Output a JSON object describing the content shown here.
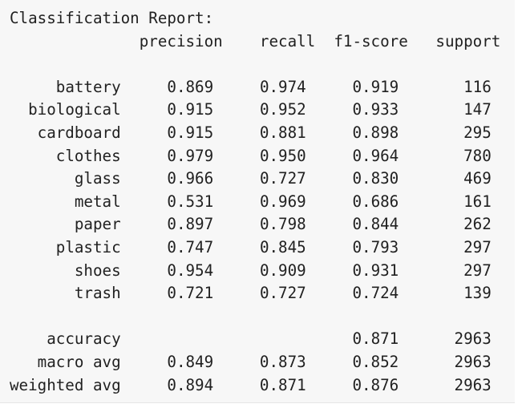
{
  "report": {
    "title": "Classification Report:",
    "headers": [
      "precision",
      "recall",
      "f1-score",
      "support"
    ],
    "rows": [
      {
        "label": "battery",
        "precision": "0.869",
        "recall": "0.974",
        "f1": "0.919",
        "support": "116"
      },
      {
        "label": "biological",
        "precision": "0.915",
        "recall": "0.952",
        "f1": "0.933",
        "support": "147"
      },
      {
        "label": "cardboard",
        "precision": "0.915",
        "recall": "0.881",
        "f1": "0.898",
        "support": "295"
      },
      {
        "label": "clothes",
        "precision": "0.979",
        "recall": "0.950",
        "f1": "0.964",
        "support": "780"
      },
      {
        "label": "glass",
        "precision": "0.966",
        "recall": "0.727",
        "f1": "0.830",
        "support": "469"
      },
      {
        "label": "metal",
        "precision": "0.531",
        "recall": "0.969",
        "f1": "0.686",
        "support": "161"
      },
      {
        "label": "paper",
        "precision": "0.897",
        "recall": "0.798",
        "f1": "0.844",
        "support": "262"
      },
      {
        "label": "plastic",
        "precision": "0.747",
        "recall": "0.845",
        "f1": "0.793",
        "support": "297"
      },
      {
        "label": "shoes",
        "precision": "0.954",
        "recall": "0.909",
        "f1": "0.931",
        "support": "297"
      },
      {
        "label": "trash",
        "precision": "0.721",
        "recall": "0.727",
        "f1": "0.724",
        "support": "139"
      }
    ],
    "summary": [
      {
        "label": "accuracy",
        "precision": "",
        "recall": "",
        "f1": "0.871",
        "support": "2963"
      },
      {
        "label": "macro avg",
        "precision": "0.849",
        "recall": "0.873",
        "f1": "0.852",
        "support": "2963"
      },
      {
        "label": "weighted avg",
        "precision": "0.894",
        "recall": "0.871",
        "f1": "0.876",
        "support": "2963"
      }
    ]
  }
}
